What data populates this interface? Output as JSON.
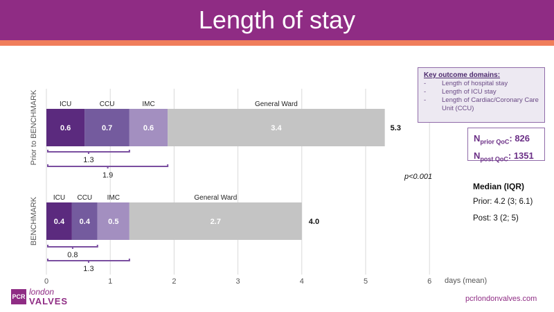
{
  "header": {
    "title": "Length of stay"
  },
  "colors": {
    "header_bg": "#8f2c84",
    "header_stripe": "#f07e5b",
    "icu": "#5b2a7e",
    "ccu": "#745b9e",
    "imc": "#a38fc0",
    "ward": "#c4c4c4",
    "bracket": "#7a4ea0"
  },
  "chart_data": {
    "type": "bar",
    "orientation": "horizontal",
    "stacked": true,
    "xlabel": "days (mean)",
    "xlim": [
      0,
      6
    ],
    "x_ticks": [
      "0",
      "1",
      "2",
      "3",
      "4",
      "5",
      "6"
    ],
    "grid": true,
    "categories": [
      "Prior to BENCHMARK",
      "BENCHMARK"
    ],
    "series": [
      {
        "name": "ICU",
        "values": [
          0.6,
          0.4
        ]
      },
      {
        "name": "CCU",
        "values": [
          0.7,
          0.4
        ]
      },
      {
        "name": "IMC",
        "values": [
          0.6,
          0.5
        ]
      },
      {
        "name": "General Ward",
        "values": [
          3.4,
          2.7
        ]
      }
    ],
    "totals": [
      "5.3",
      "4.0"
    ],
    "brackets": [
      {
        "category": "Prior to BENCHMARK",
        "label": "1.3",
        "span": [
          0,
          1.3
        ]
      },
      {
        "category": "Prior to BENCHMARK",
        "label": "1.9",
        "span": [
          0,
          1.9
        ]
      },
      {
        "category": "BENCHMARK",
        "label": "0.8",
        "span": [
          0,
          0.8
        ]
      },
      {
        "category": "BENCHMARK",
        "label": "1.3",
        "span": [
          0,
          1.3
        ]
      }
    ],
    "annotations": {
      "p_value": "p<0.001"
    }
  },
  "legend": {
    "title": "Key outcome domains:",
    "dash": "-",
    "items": [
      "Length of hospital stay",
      "Length of ICU stay",
      "Length of Cardiac/Coronary Care Unit (CCU)"
    ]
  },
  "counts": {
    "prior_label": "N",
    "prior_sub": "prior QoC",
    "prior_value": ": 826",
    "post_label": "N",
    "post_sub": "post QoC",
    "post_value": ": 1351"
  },
  "median": {
    "title": "Median (IQR)",
    "prior": "Prior: 4.2 (3; 6.1)",
    "post": "Post: 3 (2; 5)"
  },
  "footer": {
    "logo_mark": "PCR",
    "logo_small": "london",
    "logo_big": "VALVES",
    "url": "pcrlondonvalves.com"
  }
}
